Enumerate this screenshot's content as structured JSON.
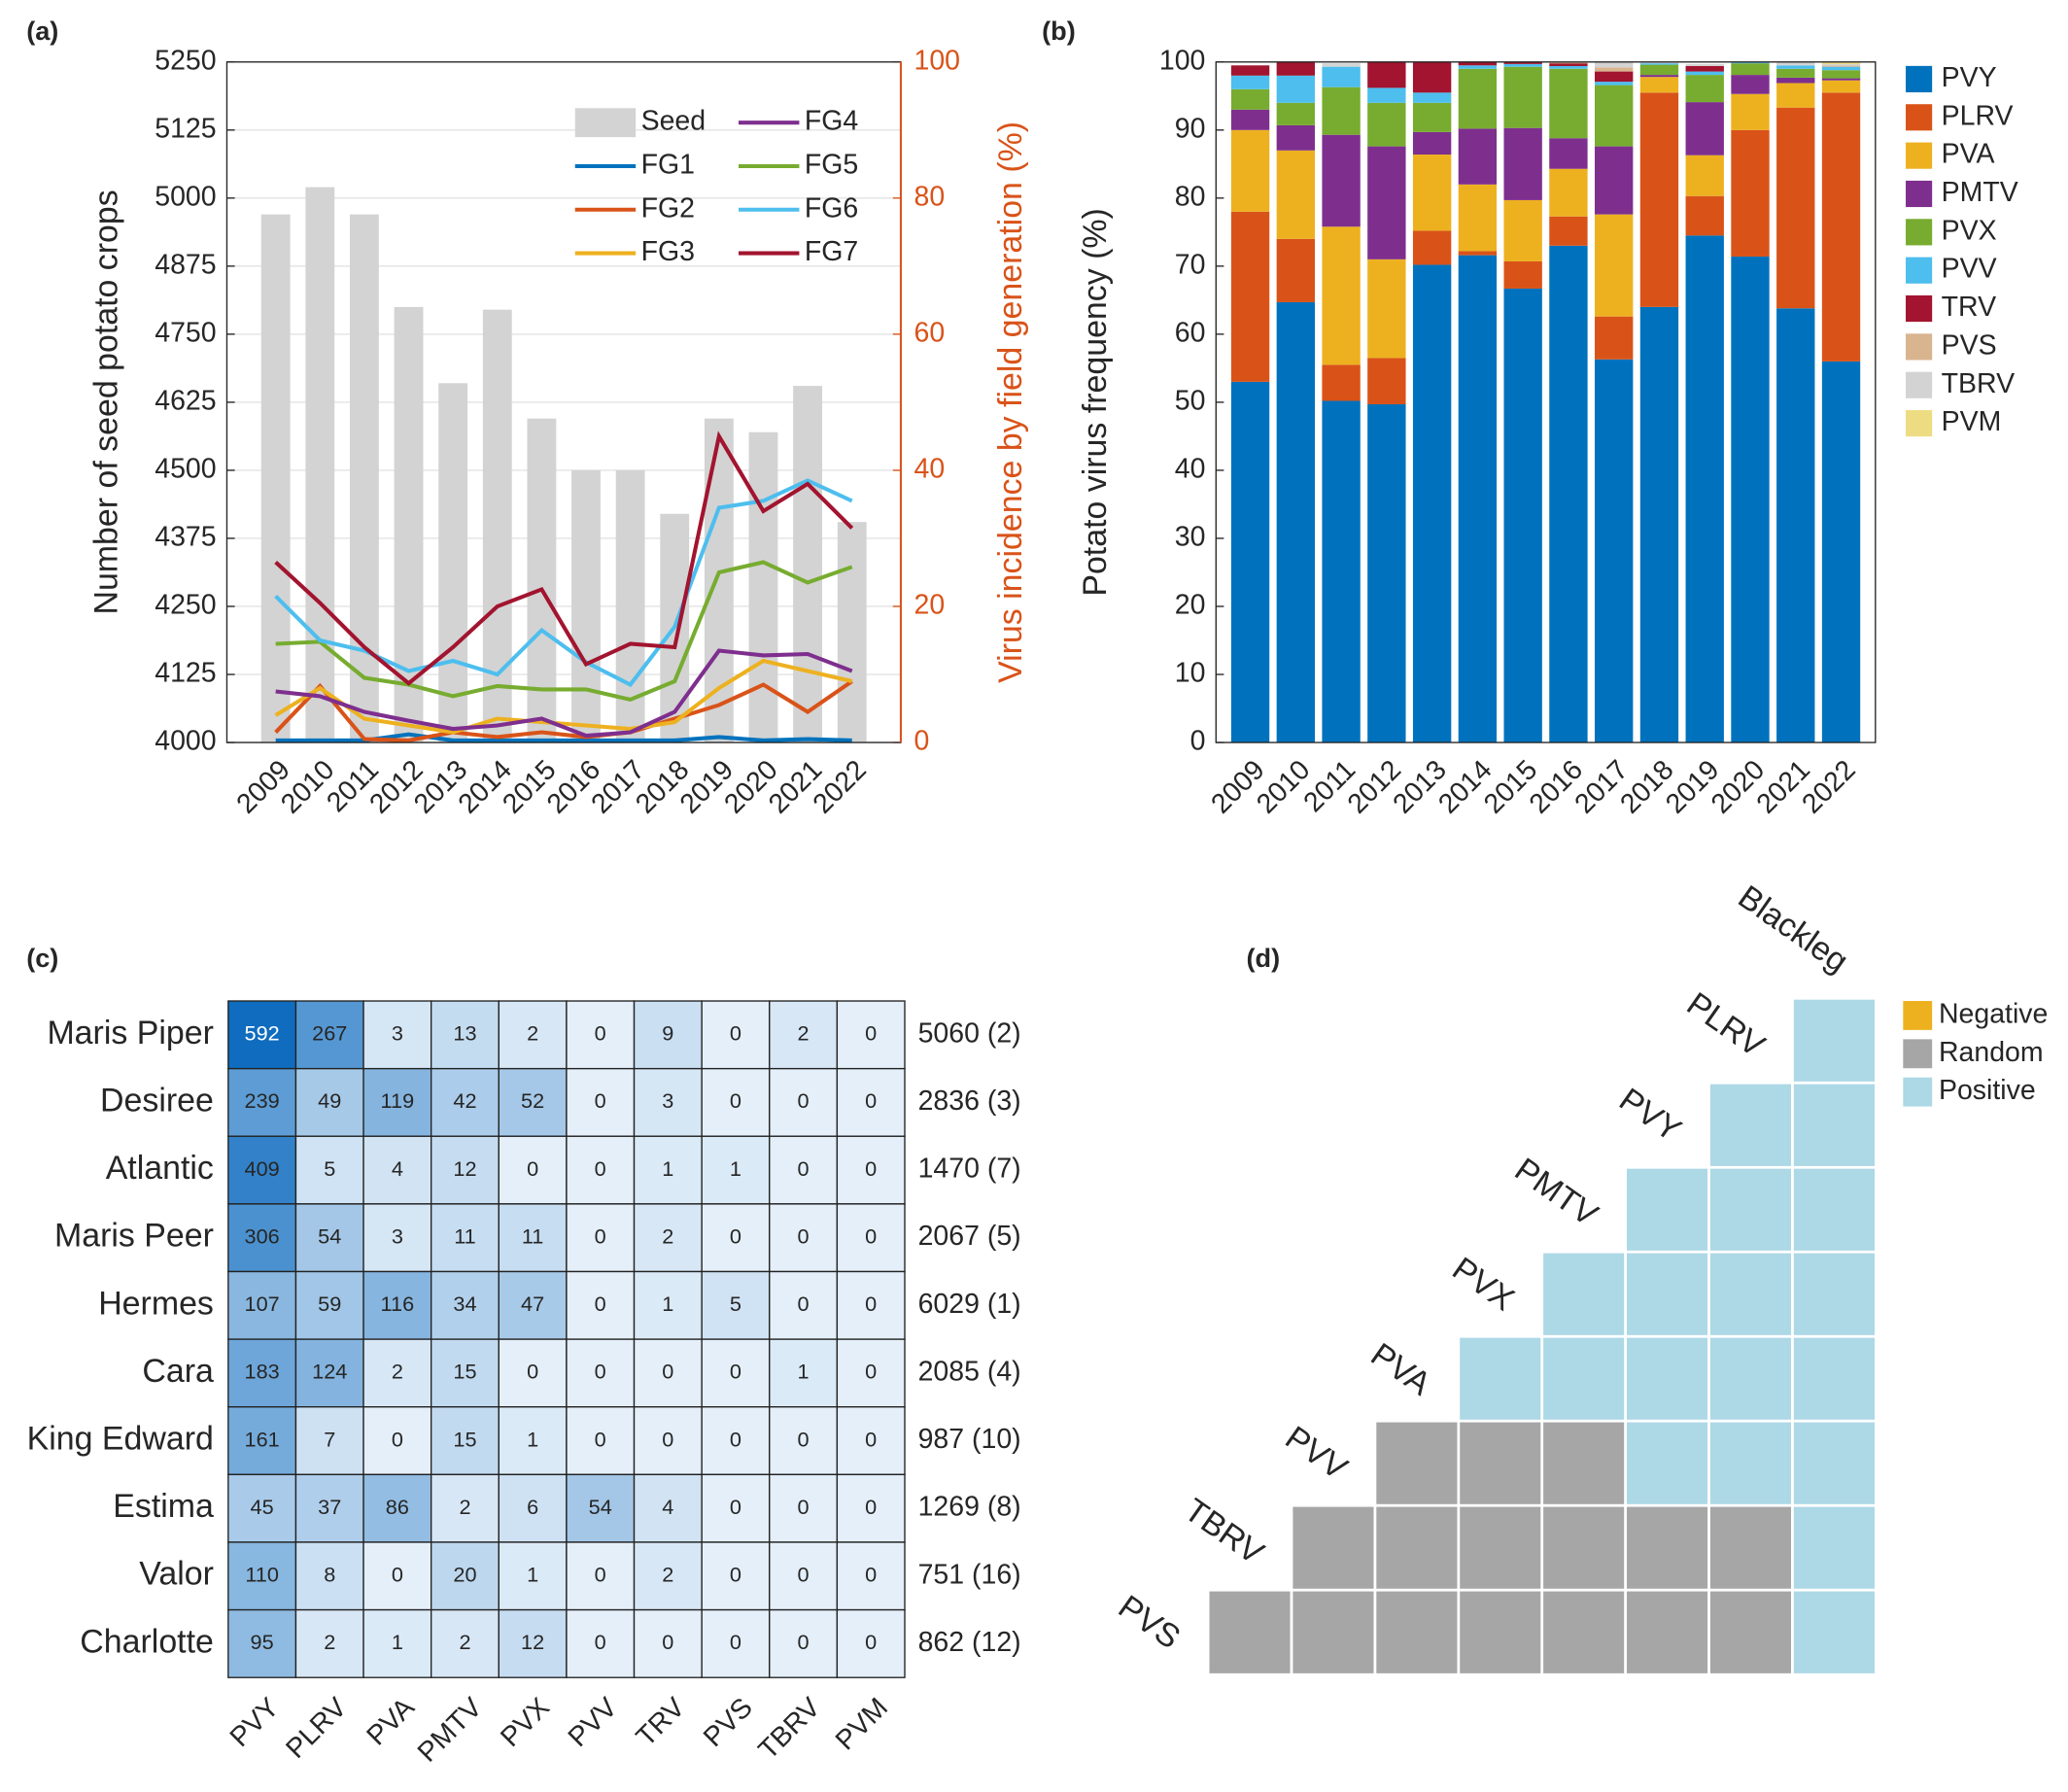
{
  "chart_data": [
    {
      "type": "bar_line",
      "title": "(a)",
      "categories": [
        "2009",
        "2010",
        "2011",
        "2012",
        "2013",
        "2014",
        "2015",
        "2016",
        "2017",
        "2018",
        "2019",
        "2020",
        "2021",
        "2022"
      ],
      "ylabel": "Number of seed potato crops",
      "y2label": "Virus incidence by field generation (%)",
      "ylim": [
        4000,
        5250
      ],
      "yticks": [
        4000,
        4125,
        4250,
        4375,
        4500,
        4625,
        4750,
        4875,
        5000,
        5125,
        5250
      ],
      "y2lim": [
        0,
        100
      ],
      "y2ticks": [
        0,
        20,
        40,
        60,
        80,
        100
      ],
      "grid": true,
      "legend": "top-right",
      "series": [
        {
          "name": "Seed",
          "color": "#d3d3d3",
          "values": [
            4970,
            5020,
            4970,
            4800,
            4660,
            4795,
            4595,
            4500,
            4500,
            4420,
            4595,
            4570,
            4655,
            4405
          ]
        },
        {
          "name": "FG1",
          "color": "#0072bd",
          "axis": "y2",
          "values": [
            0.3,
            0.3,
            0.3,
            1.2,
            0.3,
            0.3,
            0.3,
            0.3,
            0.3,
            0.3,
            0.8,
            0.3,
            0.5,
            0.3
          ]
        },
        {
          "name": "FG2",
          "color": "#d95319",
          "axis": "y2",
          "values": [
            1.5,
            8.3,
            0.5,
            0.3,
            1.5,
            0.8,
            1.5,
            0.8,
            1.5,
            3.5,
            5.5,
            8.5,
            4.5,
            9
          ]
        },
        {
          "name": "FG3",
          "color": "#edb120",
          "axis": "y2",
          "values": [
            4,
            8,
            3.5,
            2.5,
            1.5,
            3.5,
            3,
            2.5,
            2,
            3,
            8,
            12,
            10.5,
            9
          ]
        },
        {
          "name": "FG4",
          "color": "#7e2f8e",
          "axis": "y2",
          "values": [
            7.5,
            6.8,
            4.5,
            3.2,
            2,
            2.5,
            3.5,
            1,
            1.5,
            4.5,
            13.5,
            12.8,
            13,
            10.5
          ]
        },
        {
          "name": "FG5",
          "color": "#77ac30",
          "axis": "y2",
          "values": [
            14.5,
            14.8,
            9.5,
            8.5,
            6.8,
            8.3,
            7.8,
            7.8,
            6.3,
            9,
            25,
            26.5,
            23.5,
            25.8
          ]
        },
        {
          "name": "FG6",
          "color": "#4dbeee",
          "axis": "y2",
          "values": [
            21.5,
            15,
            13.5,
            10.5,
            12,
            10,
            16.5,
            11.8,
            8.5,
            17,
            34.5,
            35.5,
            38.5,
            35.5
          ]
        },
        {
          "name": "FG7",
          "color": "#a2142f",
          "axis": "y2",
          "values": [
            26.5,
            20.5,
            14,
            8.7,
            14,
            20,
            22.5,
            11.5,
            14.5,
            14,
            45,
            34,
            38,
            31.5
          ]
        }
      ]
    },
    {
      "type": "stacked_bar",
      "title": "(b)",
      "categories": [
        "2009",
        "2010",
        "2011",
        "2012",
        "2013",
        "2014",
        "2015",
        "2016",
        "2017",
        "2018",
        "2019",
        "2020",
        "2021",
        "2022"
      ],
      "ylabel": "Potato virus frequency (%)",
      "ylim": [
        0,
        100
      ],
      "yticks": [
        0,
        10,
        20,
        30,
        40,
        50,
        60,
        70,
        80,
        90,
        100
      ],
      "legend": "outside-right",
      "series": [
        {
          "name": "PVY",
          "color": "#0072bd",
          "values": [
            53,
            64.7,
            50.2,
            49.7,
            70.2,
            71.6,
            66.7,
            73,
            56.3,
            64,
            74.5,
            71.4,
            63.8,
            56
          ]
        },
        {
          "name": "PLRV",
          "color": "#d95319",
          "values": [
            25,
            9.3,
            5.3,
            6.8,
            5,
            0.6,
            4,
            4.3,
            6.3,
            31.5,
            5.8,
            18.6,
            29.5,
            39.5
          ]
        },
        {
          "name": "PVA",
          "color": "#edb120",
          "values": [
            12,
            13,
            20.3,
            14.5,
            11.2,
            9.8,
            9,
            7,
            15,
            2.3,
            6,
            5.3,
            3.6,
            1.8
          ]
        },
        {
          "name": "PMTV",
          "color": "#7e2f8e",
          "values": [
            3,
            3.7,
            13.5,
            16.6,
            3.3,
            8.2,
            10.6,
            4.5,
            10,
            0.3,
            7.8,
            2.8,
            0.8,
            0.3
          ]
        },
        {
          "name": "PVX",
          "color": "#77ac30",
          "values": [
            3,
            3.3,
            7,
            6.4,
            4.3,
            8.8,
            9,
            10.2,
            9,
            1.5,
            4,
            1.7,
            1.3,
            1.2
          ]
        },
        {
          "name": "PVV",
          "color": "#4dbeee",
          "values": [
            2,
            4,
            3,
            2.2,
            1.5,
            0.5,
            0.4,
            0.4,
            0.5,
            0.2,
            0.5,
            0.2,
            0.5,
            0.5
          ]
        },
        {
          "name": "TRV",
          "color": "#a2142f",
          "values": [
            1.5,
            2,
            0,
            3.8,
            4.5,
            0.5,
            0.3,
            0.4,
            1.5,
            0,
            0.8,
            0,
            0,
            0
          ]
        },
        {
          "name": "PVS",
          "color": "#d8b48f",
          "values": [
            0,
            0,
            0,
            0,
            0,
            0,
            0,
            0.2,
            0.6,
            0,
            0,
            0,
            0,
            0.2
          ]
        },
        {
          "name": "TBRV",
          "color": "#d3d3d3",
          "values": [
            0,
            0,
            0.5,
            0,
            0,
            0,
            0,
            0,
            0.8,
            0.2,
            0.3,
            0,
            0.5,
            0.2
          ]
        },
        {
          "name": "PVM",
          "color": "#eedc82",
          "values": [
            0,
            0,
            0,
            0,
            0,
            0,
            0,
            0,
            0,
            0,
            0,
            0,
            0,
            0.3
          ]
        }
      ]
    },
    {
      "type": "heatmap",
      "title": "(c)",
      "rows": [
        "Maris Piper",
        "Desiree",
        "Atlantic",
        "Maris Peer",
        "Hermes",
        "Cara",
        "King Edward",
        "Estima",
        "Valor",
        "Charlotte"
      ],
      "columns": [
        "PVY",
        "PLRV",
        "PVA",
        "PMTV",
        "PVX",
        "PVV",
        "TRV",
        "PVS",
        "TBRV",
        "PVM"
      ],
      "values": [
        [
          592,
          267,
          3,
          13,
          2,
          0,
          9,
          0,
          2,
          0
        ],
        [
          239,
          49,
          119,
          42,
          52,
          0,
          3,
          0,
          0,
          0
        ],
        [
          409,
          5,
          4,
          12,
          0,
          0,
          1,
          1,
          0,
          0
        ],
        [
          306,
          54,
          3,
          11,
          11,
          0,
          2,
          0,
          0,
          0
        ],
        [
          107,
          59,
          116,
          34,
          47,
          0,
          1,
          5,
          0,
          0
        ],
        [
          183,
          124,
          2,
          15,
          0,
          0,
          0,
          0,
          1,
          0
        ],
        [
          161,
          7,
          0,
          15,
          1,
          0,
          0,
          0,
          0,
          0
        ],
        [
          45,
          37,
          86,
          2,
          6,
          54,
          4,
          0,
          0,
          0
        ],
        [
          110,
          8,
          0,
          20,
          1,
          0,
          2,
          0,
          0,
          0
        ],
        [
          95,
          2,
          1,
          2,
          12,
          0,
          0,
          0,
          0,
          0
        ]
      ],
      "row_totals": [
        "5060 (2)",
        "2836 (3)",
        "1470 (7)",
        "2067 (5)",
        "6029 (1)",
        "2085 (4)",
        "987 (10)",
        "1269 (8)",
        "751 (16)",
        "862 (12)"
      ],
      "colors": [
        "#e4eff9",
        "#0f6cbf"
      ]
    },
    {
      "type": "matrix",
      "title": "(d)",
      "labels": [
        "PVS",
        "TBRV",
        "PVV",
        "PVA",
        "PVX",
        "PMTV",
        "PVY",
        "PLRV",
        "Blackleg"
      ],
      "legend": [
        {
          "name": "Negative",
          "color": "#edb120"
        },
        {
          "name": "Random",
          "color": "#a6a6a6"
        },
        {
          "name": "Positive",
          "color": "#add8e6"
        }
      ],
      "cells": [
        [
          "Positive"
        ],
        [
          "Positive",
          "Positive"
        ],
        [
          "Positive",
          "Positive",
          "Positive"
        ],
        [
          "Positive",
          "Positive",
          "Positive",
          "Positive"
        ],
        [
          "Positive",
          "Positive",
          "Positive",
          "Positive",
          "Positive"
        ],
        [
          "Random",
          "Random",
          "Random",
          "Positive",
          "Positive",
          "Positive"
        ],
        [
          "Random",
          "Random",
          "Random",
          "Random",
          "Random",
          "Random",
          "Positive"
        ],
        [
          "Random",
          "Random",
          "Random",
          "Random",
          "Random",
          "Random",
          "Random",
          "Positive"
        ]
      ]
    }
  ]
}
